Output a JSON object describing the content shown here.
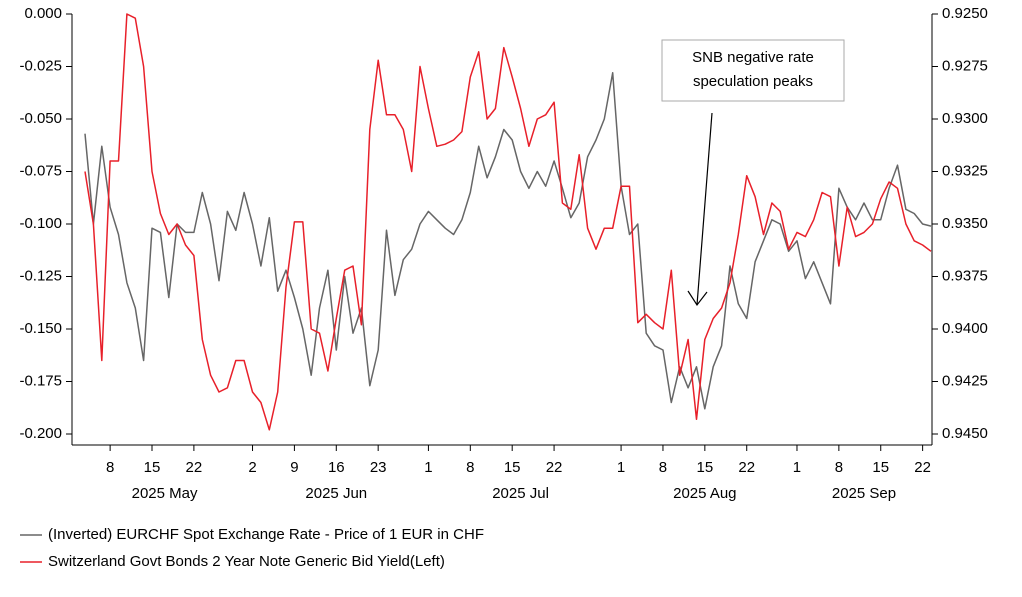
{
  "chart_data": {
    "type": "line",
    "categories": [
      "2025-05-05",
      "2025-05-06",
      "2025-05-07",
      "2025-05-08",
      "2025-05-09",
      "2025-05-12",
      "2025-05-13",
      "2025-05-14",
      "2025-05-15",
      "2025-05-16",
      "2025-05-19",
      "2025-05-20",
      "2025-05-21",
      "2025-05-22",
      "2025-05-23",
      "2025-05-26",
      "2025-05-27",
      "2025-05-28",
      "2025-05-29",
      "2025-05-30",
      "2025-06-02",
      "2025-06-03",
      "2025-06-04",
      "2025-06-05",
      "2025-06-06",
      "2025-06-09",
      "2025-06-10",
      "2025-06-11",
      "2025-06-12",
      "2025-06-13",
      "2025-06-16",
      "2025-06-17",
      "2025-06-18",
      "2025-06-19",
      "2025-06-20",
      "2025-06-23",
      "2025-06-24",
      "2025-06-25",
      "2025-06-26",
      "2025-06-27",
      "2025-06-30",
      "2025-07-01",
      "2025-07-02",
      "2025-07-03",
      "2025-07-04",
      "2025-07-07",
      "2025-07-08",
      "2025-07-09",
      "2025-07-10",
      "2025-07-11",
      "2025-07-14",
      "2025-07-15",
      "2025-07-16",
      "2025-07-17",
      "2025-07-18",
      "2025-07-21",
      "2025-07-22",
      "2025-07-23",
      "2025-07-24",
      "2025-07-25",
      "2025-07-28",
      "2025-07-29",
      "2025-07-30",
      "2025-07-31",
      "2025-08-01",
      "2025-08-04",
      "2025-08-05",
      "2025-08-06",
      "2025-08-07",
      "2025-08-08",
      "2025-08-11",
      "2025-08-12",
      "2025-08-13",
      "2025-08-14",
      "2025-08-15",
      "2025-08-18",
      "2025-08-19",
      "2025-08-20",
      "2025-08-21",
      "2025-08-22",
      "2025-08-25",
      "2025-08-26",
      "2025-08-27",
      "2025-08-28",
      "2025-08-29",
      "2025-09-01",
      "2025-09-02",
      "2025-09-03",
      "2025-09-04",
      "2025-09-05",
      "2025-09-08",
      "2025-09-09",
      "2025-09-10",
      "2025-09-11",
      "2025-09-12",
      "2025-09-15",
      "2025-09-16",
      "2025-09-17",
      "2025-09-18",
      "2025-09-19",
      "2025-09-22",
      "2025-09-23"
    ],
    "xticks": [
      {
        "value": "2025-05-08",
        "label": "8"
      },
      {
        "value": "2025-05-15",
        "label": "15"
      },
      {
        "value": "2025-05-22",
        "label": "22"
      },
      {
        "value": "2025-06-02",
        "label": "2"
      },
      {
        "value": "2025-06-09",
        "label": "9"
      },
      {
        "value": "2025-06-16",
        "label": "16"
      },
      {
        "value": "2025-06-23",
        "label": "23"
      },
      {
        "value": "2025-07-01",
        "label": "1"
      },
      {
        "value": "2025-07-08",
        "label": "8"
      },
      {
        "value": "2025-07-15",
        "label": "15"
      },
      {
        "value": "2025-07-22",
        "label": "22"
      },
      {
        "value": "2025-08-01",
        "label": "1"
      },
      {
        "value": "2025-08-08",
        "label": "8"
      },
      {
        "value": "2025-08-15",
        "label": "15"
      },
      {
        "value": "2025-08-22",
        "label": "22"
      },
      {
        "value": "2025-09-01",
        "label": "1"
      },
      {
        "value": "2025-09-08",
        "label": "8"
      },
      {
        "value": "2025-09-15",
        "label": "15"
      },
      {
        "value": "2025-09-22",
        "label": "22"
      }
    ],
    "x_groups": [
      "2025 May",
      "2025 Jun",
      "2025 Jul",
      "2025 Aug",
      "2025 Sep"
    ],
    "ylim": [
      -0.2,
      0
    ],
    "yticks": [
      {
        "value": 0,
        "label": "0.000"
      },
      -0.025,
      {
        "value": -0.05,
        "label": "-0.050"
      },
      -0.075,
      {
        "value": -0.1,
        "label": "-0.100"
      },
      -0.125,
      {
        "value": -0.15,
        "label": "-0.150"
      },
      -0.175,
      {
        "value": -0.2,
        "label": "-0.200"
      }
    ],
    "y2lim": [
      0.945,
      0.925
    ],
    "y2ticks": [
      {
        "value": 0.925,
        "label": "0.9250"
      },
      0.9275,
      {
        "value": 0.93,
        "label": "0.9300"
      },
      0.9325,
      {
        "value": 0.935,
        "label": "0.9350"
      },
      0.9375,
      {
        "value": 0.94,
        "label": "0.9400"
      },
      0.9425,
      {
        "value": 0.945,
        "label": "0.9450"
      }
    ],
    "annotation": [
      "SNB negative rate",
      "speculation peaks"
    ],
    "series": [
      {
        "name": "(Inverted) EURCHF Spot Exchange Rate - Price of 1 EUR in CHF",
        "color": "#666666",
        "axis": "y2",
        "values": [
          0.9307,
          0.935,
          0.9313,
          0.9342,
          0.9355,
          0.9378,
          0.939,
          0.9415,
          0.9352,
          0.9354,
          0.9385,
          0.935,
          0.9354,
          0.9354,
          0.9335,
          0.935,
          0.9377,
          0.9344,
          0.9353,
          0.9335,
          0.935,
          0.937,
          0.9347,
          0.9382,
          0.9372,
          0.9385,
          0.94,
          0.9422,
          0.939,
          0.9372,
          0.941,
          0.9375,
          0.9402,
          0.939,
          0.9427,
          0.941,
          0.9353,
          0.9384,
          0.9367,
          0.9362,
          0.935,
          0.9344,
          0.9348,
          0.9352,
          0.9355,
          0.9348,
          0.9335,
          0.9313,
          0.9328,
          0.9318,
          0.9305,
          0.931,
          0.9325,
          0.9333,
          0.9325,
          0.9332,
          0.932,
          0.9333,
          0.9347,
          0.934,
          0.9318,
          0.931,
          0.93,
          0.9278,
          0.9332,
          0.9355,
          0.935,
          0.9402,
          0.9408,
          0.941,
          0.9435,
          0.9418,
          0.9428,
          0.9418,
          0.9438,
          0.9418,
          0.9408,
          0.937,
          0.9388,
          0.9395,
          0.9368,
          0.9358,
          0.9348,
          0.935,
          0.9363,
          0.9358,
          0.9376,
          0.9368,
          0.9378,
          0.9388,
          0.9333,
          0.9342,
          0.9348,
          0.934,
          0.9348,
          0.9348,
          0.9333,
          0.9322,
          0.9343,
          0.9345,
          0.935,
          0.9351
        ]
      },
      {
        "name": "Switzerland Govt Bonds 2 Year Note Generic Bid Yield(Left)",
        "color": "#e8202a",
        "axis": "y",
        "values": [
          -0.075,
          -0.1,
          -0.165,
          -0.07,
          -0.07,
          0,
          -0.002,
          -0.025,
          -0.075,
          -0.095,
          -0.105,
          -0.1,
          -0.11,
          -0.115,
          -0.155,
          -0.172,
          -0.18,
          -0.178,
          -0.165,
          -0.165,
          -0.18,
          -0.185,
          -0.198,
          -0.18,
          -0.13,
          -0.099,
          -0.099,
          -0.15,
          -0.152,
          -0.17,
          -0.145,
          -0.122,
          -0.12,
          -0.148,
          -0.055,
          -0.022,
          -0.048,
          -0.048,
          -0.055,
          -0.075,
          -0.025,
          -0.045,
          -0.063,
          -0.062,
          -0.06,
          -0.056,
          -0.03,
          -0.018,
          -0.05,
          -0.045,
          -0.016,
          -0.03,
          -0.045,
          -0.063,
          -0.05,
          -0.048,
          -0.042,
          -0.09,
          -0.093,
          -0.067,
          -0.102,
          -0.112,
          -0.102,
          -0.102,
          -0.082,
          -0.082,
          -0.147,
          -0.143,
          -0.147,
          -0.15,
          -0.122,
          -0.172,
          -0.155,
          -0.193,
          -0.155,
          -0.145,
          -0.14,
          -0.128,
          -0.105,
          -0.077,
          -0.087,
          -0.105,
          -0.09,
          -0.094,
          -0.112,
          -0.104,
          -0.106,
          -0.098,
          -0.085,
          -0.087,
          -0.12,
          -0.092,
          -0.106,
          -0.104,
          -0.1,
          -0.088,
          -0.08,
          -0.083,
          -0.1,
          -0.108,
          -0.11,
          -0.113
        ]
      }
    ]
  }
}
